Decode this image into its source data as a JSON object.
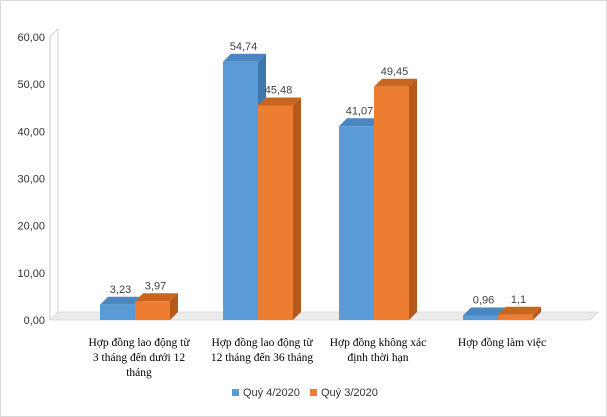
{
  "chart_data": {
    "type": "bar",
    "categories": [
      [
        "Hợp đồng lao động từ",
        "3 tháng đến dưới 12",
        "tháng"
      ],
      [
        "Hợp đồng lao động từ",
        "12 tháng đến 36 tháng"
      ],
      [
        "Hợp đồng không xác",
        "định thời hạn"
      ],
      [
        "Hợp đồng làm việc"
      ]
    ],
    "series": [
      {
        "name": "Quý 4/2020",
        "values": [
          3.23,
          54.74,
          41.07,
          0.96
        ],
        "labels": [
          "3,23",
          "54,74",
          "41,07",
          "0,96"
        ],
        "color": "#5b9bd5",
        "side": "#3f78ac",
        "top": "#4a86c2"
      },
      {
        "name": "Quý 3/2020",
        "values": [
          3.97,
          45.48,
          49.45,
          1.1
        ],
        "labels": [
          "3,97",
          "45,48",
          "49,45",
          "1,1"
        ],
        "color": "#ed7d31",
        "side": "#b55a1c",
        "top": "#c8651f"
      }
    ],
    "yticks": [
      "0,00",
      "10,00",
      "20,00",
      "30,00",
      "40,00",
      "50,00",
      "60,00"
    ],
    "ylim": [
      0,
      60
    ],
    "grid": false,
    "legend": "bottom"
  }
}
